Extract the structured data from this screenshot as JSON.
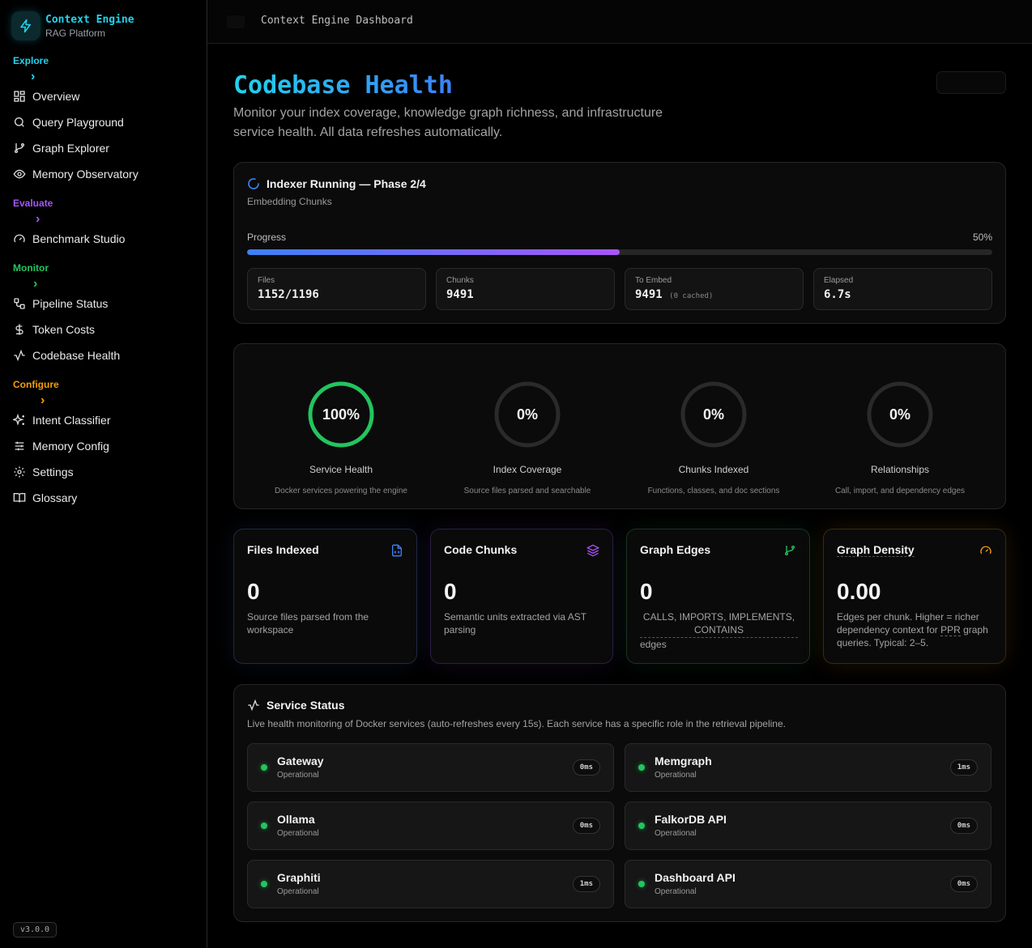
{
  "brand": {
    "name": "Context Engine",
    "subtitle": "RAG Platform"
  },
  "sidebar": {
    "sections": [
      {
        "label": "Explore",
        "color": "#22d3ee",
        "items": [
          {
            "label": "Overview",
            "icon": "grid-icon"
          },
          {
            "label": "Query Playground",
            "icon": "search-icon"
          },
          {
            "label": "Graph Explorer",
            "icon": "git-branch-icon"
          },
          {
            "label": "Memory Observatory",
            "icon": "eye-icon"
          }
        ]
      },
      {
        "label": "Evaluate",
        "color": "#a855f7",
        "items": [
          {
            "label": "Benchmark Studio",
            "icon": "gauge-icon"
          }
        ]
      },
      {
        "label": "Monitor",
        "color": "#22c55e",
        "items": [
          {
            "label": "Pipeline Status",
            "icon": "workflow-icon"
          },
          {
            "label": "Token Costs",
            "icon": "dollar-icon"
          },
          {
            "label": "Codebase Health",
            "icon": "activity-icon"
          }
        ]
      },
      {
        "label": "Configure",
        "color": "#f59e0b",
        "items": [
          {
            "label": "Intent Classifier",
            "icon": "sparkles-icon"
          },
          {
            "label": "Memory Config",
            "icon": "sliders-icon"
          },
          {
            "label": "Settings",
            "icon": "gear-icon"
          },
          {
            "label": "Glossary",
            "icon": "book-icon"
          }
        ]
      }
    ],
    "version": "v3.0.0"
  },
  "topbar": {
    "title": "Context Engine Dashboard"
  },
  "page": {
    "title": "Codebase Health",
    "description": "Monitor your index coverage, knowledge graph richness, and infrastructure service health. All data refreshes automatically."
  },
  "indexer": {
    "title": "Indexer Running — Phase 2/4",
    "subtitle": "Embedding Chunks",
    "progress_label": "Progress",
    "progress_text": "50%",
    "progress": 0.5,
    "stats": [
      {
        "label": "Files",
        "value": "1152/1196",
        "note": ""
      },
      {
        "label": "Chunks",
        "value": "9491",
        "note": ""
      },
      {
        "label": "To Embed",
        "value": "9491",
        "note": "(0 cached)"
      },
      {
        "label": "Elapsed",
        "value": "6.7s",
        "note": ""
      }
    ]
  },
  "rings": [
    {
      "value": "100%",
      "fraction": 1.0,
      "title": "Service Health",
      "desc": "Docker services powering the engine",
      "color": "#22c55e"
    },
    {
      "value": "0%",
      "fraction": 0,
      "title": "Index Coverage",
      "desc": "Source files parsed and searchable",
      "color": "#3b82f6"
    },
    {
      "value": "0%",
      "fraction": 0,
      "title": "Chunks Indexed",
      "desc": "Functions, classes, and doc sections",
      "color": "#a855f7"
    },
    {
      "value": "0%",
      "fraction": 0,
      "title": "Relationships",
      "desc": "Call, import, and dependency edges",
      "color": "#f59e0b"
    }
  ],
  "metrics": {
    "files": {
      "title": "Files Indexed",
      "value": "0",
      "desc": "Source files parsed from the workspace",
      "icon": "file-code-icon",
      "accent": "#3b82f6"
    },
    "chunks": {
      "title": "Code Chunks",
      "value": "0",
      "desc": "Semantic units extracted via AST parsing",
      "icon": "layers-icon",
      "accent": "#a855f7"
    },
    "edges": {
      "title": "Graph Edges",
      "value": "0",
      "desc_term": "CALLS, IMPORTS, IMPLEMENTS, CONTAINS",
      "desc_suffix": "edges",
      "icon": "git-branch-icon",
      "accent": "#22c55e"
    },
    "density": {
      "title": "Graph Density",
      "value": "0.00",
      "desc": "Edges per chunk. Higher = richer dependency context for PPR graph queries. Typical: 2–5.",
      "desc_pre": "Edges per chunk. Higher = richer dependency context for ",
      "desc_term": "PPR",
      "desc_post": " graph queries. Typical: 2–5.",
      "icon": "gauge-icon",
      "accent": "#f59e0b"
    }
  },
  "services": {
    "title": "Service Status",
    "subtitle": "Live health monitoring of Docker services (auto-refreshes every 15s). Each service has a specific role in the retrieval pipeline.",
    "items": [
      {
        "name": "Gateway",
        "status": "Operational",
        "latency": "0ms"
      },
      {
        "name": "Memgraph",
        "status": "Operational",
        "latency": "1ms"
      },
      {
        "name": "Ollama",
        "status": "Operational",
        "latency": "0ms"
      },
      {
        "name": "FalkorDB API",
        "status": "Operational",
        "latency": "0ms"
      },
      {
        "name": "Graphiti",
        "status": "Operational",
        "latency": "1ms"
      },
      {
        "name": "Dashboard API",
        "status": "Operational",
        "latency": "0ms"
      }
    ]
  }
}
